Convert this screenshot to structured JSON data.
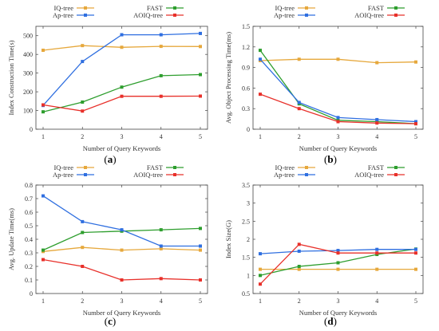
{
  "colors": {
    "IQ-tree": "#E6A83C",
    "FAST": "#2E9E2E",
    "Ap-tree": "#2F6FE0",
    "AOIQ-tree": "#E8302A"
  },
  "chart_data": [
    {
      "type": "line",
      "panel_label": "(a)",
      "xlabel": "Number of Query Keywords",
      "ylabel": "Index Construction Time(s)",
      "x": [
        1,
        2,
        3,
        4,
        5
      ],
      "xticks": [
        "1",
        "2",
        "3",
        "4",
        "5"
      ],
      "ylim": [
        0,
        550
      ],
      "yticks": [
        0,
        100,
        200,
        300,
        400,
        500
      ],
      "ytick_labels": [
        "0",
        "100",
        "200",
        "300",
        "400",
        "500"
      ],
      "legend": [
        "IQ-tree",
        "FAST",
        "Ap-tree",
        "AOIQ-tree"
      ],
      "series": [
        {
          "name": "IQ-tree",
          "values": [
            422,
            447,
            438,
            443,
            442
          ]
        },
        {
          "name": "FAST",
          "values": [
            93,
            145,
            225,
            286,
            292
          ]
        },
        {
          "name": "Ap-tree",
          "values": [
            127,
            362,
            505,
            505,
            512
          ]
        },
        {
          "name": "AOIQ-tree",
          "values": [
            130,
            97,
            176,
            176,
            177
          ]
        }
      ]
    },
    {
      "type": "line",
      "panel_label": "(b)",
      "xlabel": "Number of Query Keywords",
      "ylabel": "Avg. Object Processing Time(ms)",
      "x": [
        1,
        2,
        3,
        4,
        5
      ],
      "xticks": [
        "1",
        "2",
        "3",
        "4",
        "5"
      ],
      "ylim": [
        0,
        1.5
      ],
      "yticks": [
        0,
        0.3,
        0.6,
        0.9,
        1.2,
        1.5
      ],
      "ytick_labels": [
        "0",
        "0.3",
        "0.6",
        "0.9",
        "1.2",
        "1.5"
      ],
      "legend": [
        "IQ-tree",
        "FAST",
        "Ap-tree",
        "AOIQ-tree"
      ],
      "series": [
        {
          "name": "IQ-tree",
          "values": [
            1.0,
            1.02,
            1.02,
            0.97,
            0.98
          ]
        },
        {
          "name": "FAST",
          "values": [
            1.15,
            0.37,
            0.13,
            0.11,
            0.08
          ]
        },
        {
          "name": "Ap-tree",
          "values": [
            1.02,
            0.39,
            0.17,
            0.14,
            0.11
          ]
        },
        {
          "name": "AOIQ-tree",
          "values": [
            0.51,
            0.3,
            0.11,
            0.09,
            0.08
          ]
        }
      ]
    },
    {
      "type": "line",
      "panel_label": "(c)",
      "xlabel": "Number of Query Keywords",
      "ylabel": "Avg. Update Time(ms)",
      "x": [
        1,
        2,
        3,
        4,
        5
      ],
      "xticks": [
        "1",
        "2",
        "3",
        "4",
        "5"
      ],
      "ylim": [
        0,
        0.8
      ],
      "yticks": [
        0,
        0.1,
        0.2,
        0.3,
        0.4,
        0.5,
        0.6,
        0.7,
        0.8
      ],
      "ytick_labels": [
        "0",
        "0.1",
        "0.2",
        "0.3",
        "0.4",
        "0.5",
        "0.6",
        "0.7",
        "0.8"
      ],
      "legend": [
        "IQ-tree",
        "FAST",
        "Ap-tree",
        "AOIQ-tree"
      ],
      "series": [
        {
          "name": "IQ-tree",
          "values": [
            0.31,
            0.34,
            0.32,
            0.33,
            0.32
          ]
        },
        {
          "name": "FAST",
          "values": [
            0.32,
            0.45,
            0.46,
            0.47,
            0.48
          ]
        },
        {
          "name": "Ap-tree",
          "values": [
            0.72,
            0.53,
            0.47,
            0.35,
            0.35
          ]
        },
        {
          "name": "AOIQ-tree",
          "values": [
            0.25,
            0.2,
            0.1,
            0.11,
            0.1
          ]
        }
      ]
    },
    {
      "type": "line",
      "panel_label": "(d)",
      "xlabel": "Number of Query Keywords",
      "ylabel": "Index Size(G)",
      "x": [
        1,
        2,
        3,
        4,
        5
      ],
      "xticks": [
        "1",
        "2",
        "3",
        "4",
        "5"
      ],
      "ylim": [
        0.5,
        3.5
      ],
      "yticks": [
        0.5,
        1,
        1.5,
        2,
        2.5,
        3,
        3.5
      ],
      "ytick_labels": [
        "0.5",
        "1",
        "1.5",
        "2",
        "2.5",
        "3",
        "3.5"
      ],
      "legend": [
        "IQ-tree",
        "FAST",
        "Ap-tree",
        "AOIQ-tree"
      ],
      "series": [
        {
          "name": "IQ-tree",
          "values": [
            1.17,
            1.17,
            1.17,
            1.17,
            1.17
          ]
        },
        {
          "name": "FAST",
          "values": [
            1.0,
            1.25,
            1.35,
            1.58,
            1.73
          ]
        },
        {
          "name": "Ap-tree",
          "values": [
            1.6,
            1.67,
            1.69,
            1.72,
            1.72
          ]
        },
        {
          "name": "AOIQ-tree",
          "values": [
            0.76,
            1.86,
            1.62,
            1.62,
            1.62
          ]
        }
      ]
    }
  ]
}
